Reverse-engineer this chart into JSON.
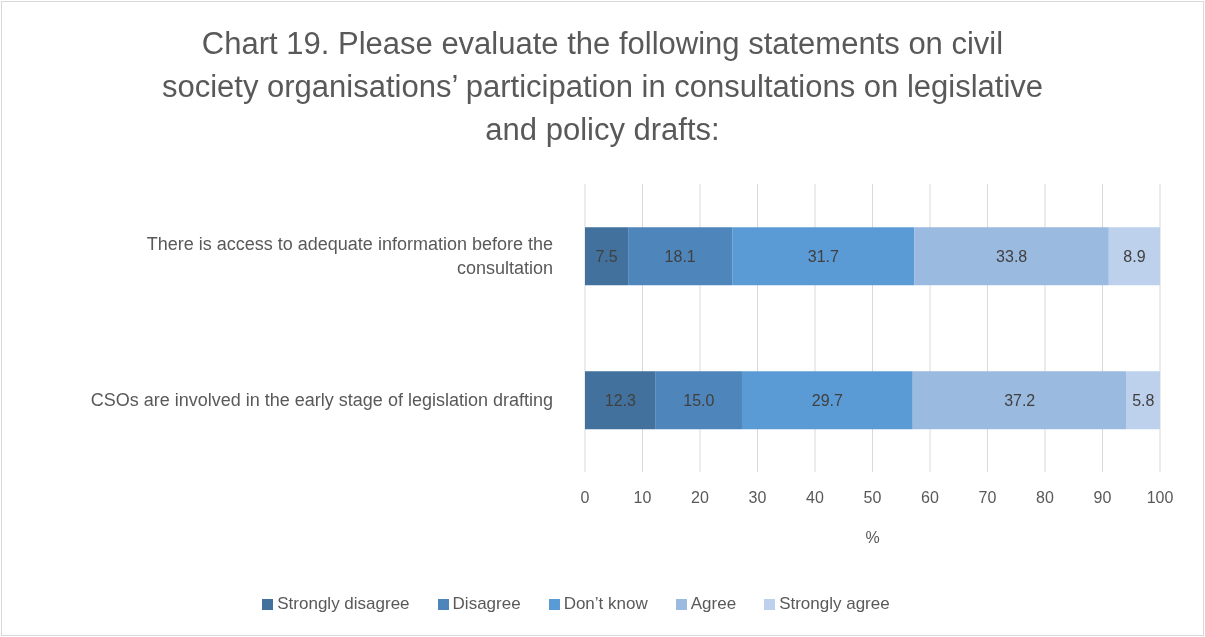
{
  "chart_data": {
    "type": "bar",
    "orientation": "horizontal",
    "stacked": true,
    "title": "Chart 19. Please evaluate the following statements on civil society organisations’ participation in consultations on legislative and policy drafts:",
    "xlabel": "%",
    "categories": [
      "There is access to adequate information before the consultation",
      "CSOs are involved in the early stage of legislation drafting"
    ],
    "series": [
      {
        "name": "Strongly disagree",
        "color": "#41719c",
        "values": [
          7.5,
          12.3
        ],
        "value_labels": [
          "7.5",
          "12.3"
        ]
      },
      {
        "name": "Disagree",
        "color": "#4e86bb",
        "values": [
          18.1,
          15.0
        ],
        "value_labels": [
          "18.1",
          "15.0"
        ]
      },
      {
        "name": "Don’t know",
        "color": "#5b9bd5",
        "values": [
          31.7,
          29.7
        ],
        "value_labels": [
          "31.7",
          "29.7"
        ]
      },
      {
        "name": "Agree",
        "color": "#9bbae0",
        "values": [
          33.8,
          37.2
        ],
        "value_labels": [
          "33.8",
          "37.2"
        ]
      },
      {
        "name": "Strongly agree",
        "color": "#bdd1ec",
        "values": [
          8.9,
          5.8
        ],
        "value_labels": [
          "8.9",
          "5.8"
        ]
      }
    ],
    "xlim": [
      0,
      100
    ],
    "xticks": [
      0,
      10,
      20,
      30,
      40,
      50,
      60,
      70,
      80,
      90,
      100
    ],
    "grid": "x",
    "legend": "bottom"
  }
}
